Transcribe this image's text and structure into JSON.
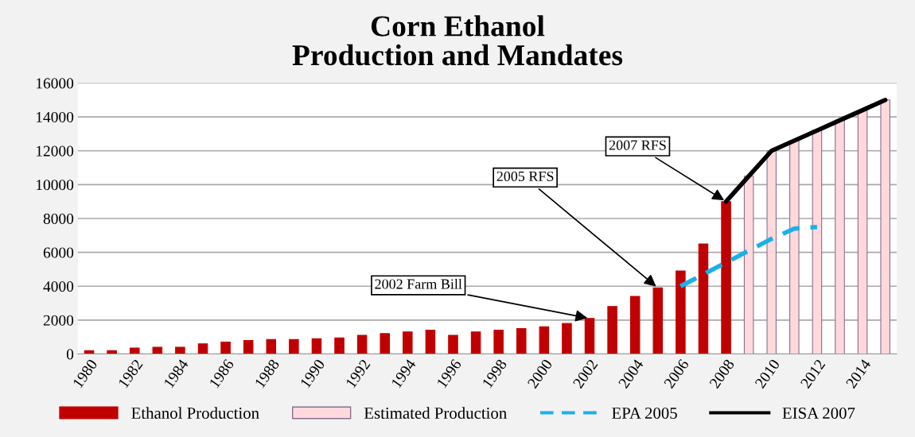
{
  "chart_data": {
    "type": "bar",
    "title": "Corn Ethanol\nProduction and Mandates",
    "x": [
      1980,
      1981,
      1982,
      1983,
      1984,
      1985,
      1986,
      1987,
      1988,
      1989,
      1990,
      1991,
      1992,
      1993,
      1994,
      1995,
      1996,
      1997,
      1998,
      1999,
      2000,
      2001,
      2002,
      2003,
      2004,
      2005,
      2006,
      2007,
      2008,
      2009,
      2010,
      2011,
      2012,
      2013,
      2014,
      2015
    ],
    "series": [
      {
        "name": "Ethanol Production",
        "color": "#c00000",
        "values": [
          200,
          200,
          350,
          400,
          400,
          600,
          700,
          800,
          850,
          850,
          900,
          950,
          1100,
          1200,
          1300,
          1400,
          1100,
          1300,
          1400,
          1500,
          1600,
          1800,
          2100,
          2800,
          3400,
          3900,
          4900,
          6500,
          9000,
          null,
          null,
          null,
          null,
          null,
          null,
          null
        ]
      },
      {
        "name": "Estimated Production",
        "color": "#ffd9dc",
        "values": [
          null,
          null,
          null,
          null,
          null,
          null,
          null,
          null,
          null,
          null,
          null,
          null,
          null,
          null,
          null,
          null,
          null,
          null,
          null,
          null,
          null,
          null,
          null,
          null,
          null,
          null,
          null,
          null,
          null,
          10500,
          12000,
          12600,
          13200,
          13800,
          14400,
          15000
        ]
      },
      {
        "name": "EPA 2005",
        "type": "line",
        "line_style": "dashed",
        "color": "#1ab0e8",
        "x": [
          2006,
          2007,
          2008,
          2009,
          2010,
          2011,
          2012
        ],
        "values": [
          4000,
          4700,
          5400,
          6100,
          6800,
          7400,
          7500
        ]
      },
      {
        "name": "EISA 2007",
        "type": "line",
        "line_style": "solid",
        "color": "#000000",
        "x": [
          2008,
          2009,
          2010,
          2011,
          2012,
          2013,
          2014,
          2015
        ],
        "values": [
          9000,
          10500,
          12000,
          12600,
          13200,
          13800,
          14400,
          15000
        ]
      }
    ],
    "xlim": [
      1979.5,
      2015.5
    ],
    "xticks": [
      1980,
      1982,
      1984,
      1986,
      1988,
      1990,
      1992,
      1994,
      1996,
      1998,
      2000,
      2002,
      2004,
      2006,
      2008,
      2010,
      2012,
      2014
    ],
    "ylim": [
      0,
      16000
    ],
    "yticks": [
      0,
      2000,
      4000,
      6000,
      8000,
      10000,
      12000,
      14000,
      16000
    ],
    "grid": "y",
    "legend": "bottom",
    "marker": "none",
    "annotations": [
      {
        "text": "2002 Farm Bill",
        "x": 2002,
        "y": 2100
      },
      {
        "text": "2005 RFS",
        "x": 2005,
        "y": 3900
      },
      {
        "text": "2007 RFS",
        "x": 2008,
        "y": 9000
      }
    ]
  }
}
